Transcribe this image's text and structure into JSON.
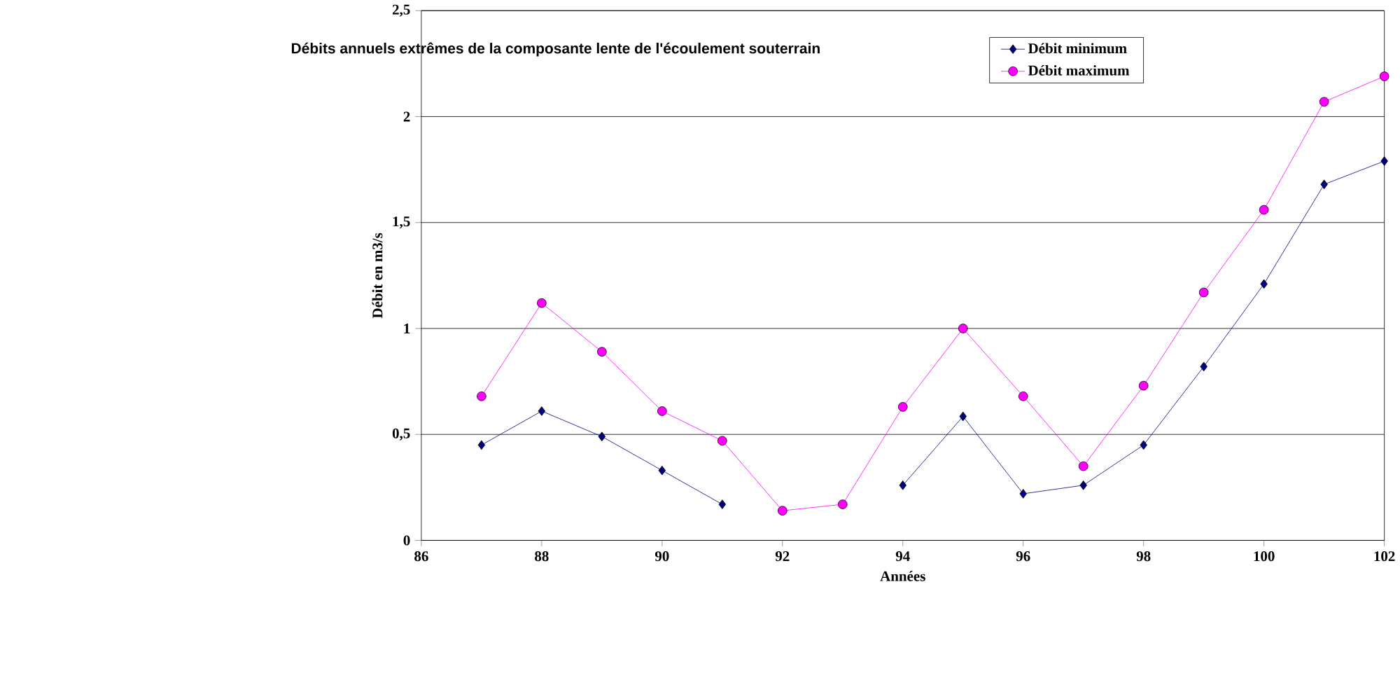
{
  "chart_data": {
    "type": "line",
    "title": "Débits annuels extrêmes de la composante lente de l'écoulement souterrain",
    "xlabel": "Années",
    "ylabel": "Débit en m3/s",
    "x": [
      87,
      88,
      89,
      90,
      91,
      92,
      93,
      94,
      95,
      96,
      97,
      98,
      99,
      100,
      101,
      102
    ],
    "series": [
      {
        "name": "Débit minimum",
        "color": "#000080",
        "marker": "diamond",
        "values": [
          0.45,
          0.61,
          0.49,
          0.33,
          0.17,
          null,
          null,
          0.26,
          0.585,
          0.22,
          0.26,
          0.45,
          0.82,
          1.21,
          1.68,
          1.79
        ]
      },
      {
        "name": "Débit maximum",
        "color": "#ff00ff",
        "marker": "circle",
        "values": [
          0.68,
          1.12,
          0.89,
          0.61,
          0.47,
          0.14,
          0.17,
          0.63,
          1.0,
          0.68,
          0.35,
          0.73,
          1.17,
          1.56,
          2.07,
          2.19
        ]
      }
    ],
    "xlim": [
      86,
      102
    ],
    "xticks": [
      86,
      88,
      90,
      92,
      94,
      96,
      98,
      100,
      102
    ],
    "ylim": [
      0,
      2.5
    ],
    "yticks": [
      0,
      {
        "value": 0.5,
        "label": "0,5"
      },
      1,
      {
        "value": 1.5,
        "label": "1,5"
      },
      2,
      {
        "value": 2.5,
        "label": "2,5"
      }
    ],
    "grid": "y",
    "legend": "top",
    "line_style": "solid"
  }
}
